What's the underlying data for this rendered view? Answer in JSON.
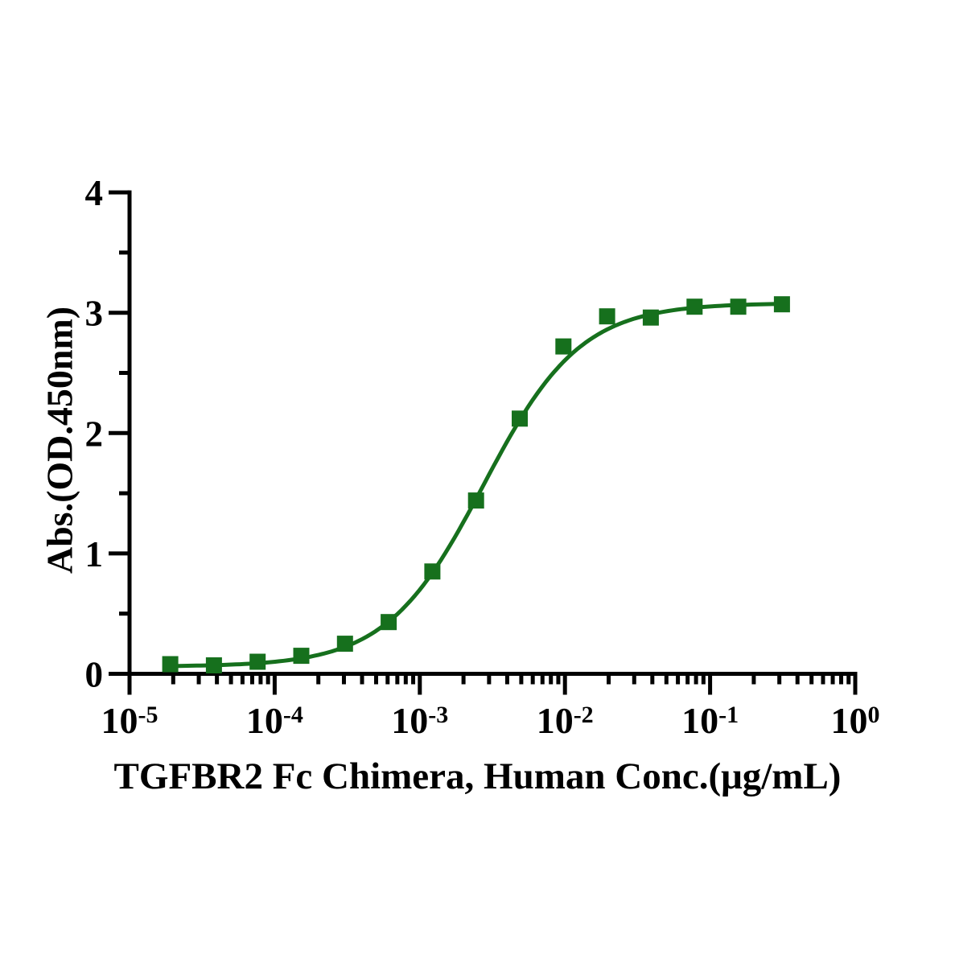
{
  "chart_data": {
    "type": "scatter",
    "curve": "4PL-sigmoid",
    "title": "TGFBR2 Fc Chimera, Human Conc.(μg/mL)",
    "xlabel": "TGFBR2 Fc Chimera, Human Conc.(μg/mL)",
    "ylabel": "Abs.(OD.450nm)",
    "x_scale": "log10",
    "xlim": [
      1e-05,
      1
    ],
    "ylim": [
      0,
      4
    ],
    "x_tick_exponents": [
      -5,
      -4,
      -3,
      -2,
      -1,
      0
    ],
    "x_tick_base": "10",
    "y_ticks": [
      0,
      1,
      2,
      3,
      4
    ],
    "y_minor_ticks": [
      0.5,
      1.5,
      2.5,
      3.5
    ],
    "grid": "off",
    "legend": "none",
    "marker": "square",
    "line_color": "#16701d",
    "marker_color": "#16701d",
    "axis_color": "#000000",
    "points": {
      "x": [
        1.907e-05,
        3.815e-05,
        7.629e-05,
        0.0001526,
        0.0003052,
        0.0006104,
        0.001221,
        0.002441,
        0.004883,
        0.009766,
        0.01953,
        0.03906,
        0.07813,
        0.15625,
        0.3125
      ],
      "y": [
        0.08,
        0.07,
        0.1,
        0.15,
        0.25,
        0.43,
        0.85,
        1.44,
        2.12,
        2.72,
        2.97,
        2.96,
        3.05,
        3.05,
        3.07
      ]
    },
    "fit": {
      "bottom": 0.06,
      "top": 3.08,
      "ec50": 0.00275,
      "hill": 1.3
    }
  }
}
